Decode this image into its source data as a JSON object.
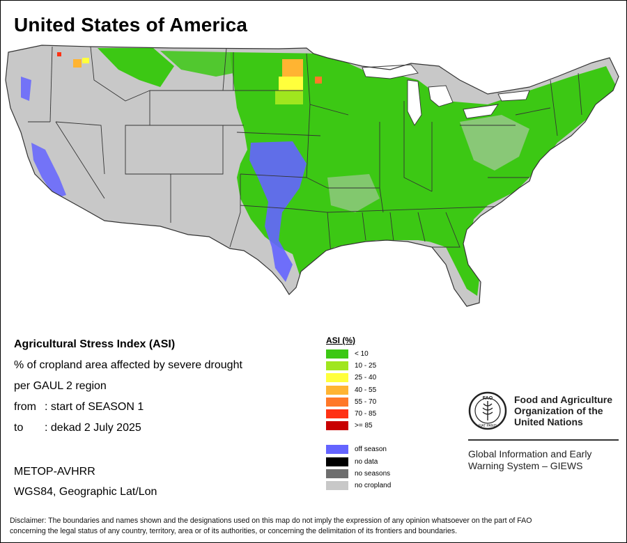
{
  "title": "United States of America",
  "info": {
    "heading": "Agricultural Stress Index (ASI)",
    "line1": "% of cropland area affected by severe drought",
    "line2": "per GAUL 2 region",
    "from_label": "from",
    "from_value": ": start of SEASON 1",
    "to_label": "to",
    "to_value": ": dekad 2 July 2025"
  },
  "meta": {
    "sensor": "METOP-AVHRR",
    "projection": "WGS84, Geographic Lat/Lon"
  },
  "legend": {
    "title": "ASI (%)",
    "classes": [
      {
        "label": "< 10",
        "color": "#3cc814"
      },
      {
        "label": "10 - 25",
        "color": "#a0e61e"
      },
      {
        "label": "25 - 40",
        "color": "#ffff3c"
      },
      {
        "label": "40 - 55",
        "color": "#ffb432"
      },
      {
        "label": "55 - 70",
        "color": "#ff7828"
      },
      {
        "label": "70 - 85",
        "color": "#ff3214"
      },
      {
        "label": ">= 85",
        "color": "#c80000"
      }
    ],
    "other": [
      {
        "label": "off season",
        "color": "#6464ff"
      },
      {
        "label": "no data",
        "color": "#000000"
      },
      {
        "label": "no seasons",
        "color": "#6e6e6e"
      },
      {
        "label": "no cropland",
        "color": "#c8c8c8"
      }
    ]
  },
  "fao": {
    "name_line1": "Food and Agriculture",
    "name_line2": "Organization of the",
    "name_line3": "United Nations",
    "giews_line1": "Global Information and Early",
    "giews_line2": "Warning System – GIEWS",
    "logo_text": "FAO",
    "logo_motto": "FIAT PANIS"
  },
  "disclaimer": {
    "line1": "Disclaimer: The boundaries and names shown and the designations used on this map do not imply the expression of any opinion whatsoever on the part of FAO",
    "line2": "concerning the legal status of any country, territory, area or of its authorities, or concerning the delimitation of its frontiers and boundaries."
  },
  "map_colors": {
    "land": "#c8c8c8",
    "low_stress": "#3cc814",
    "moderate": "#a0e61e",
    "off_season": "#6464ff",
    "borders": "#333333"
  }
}
